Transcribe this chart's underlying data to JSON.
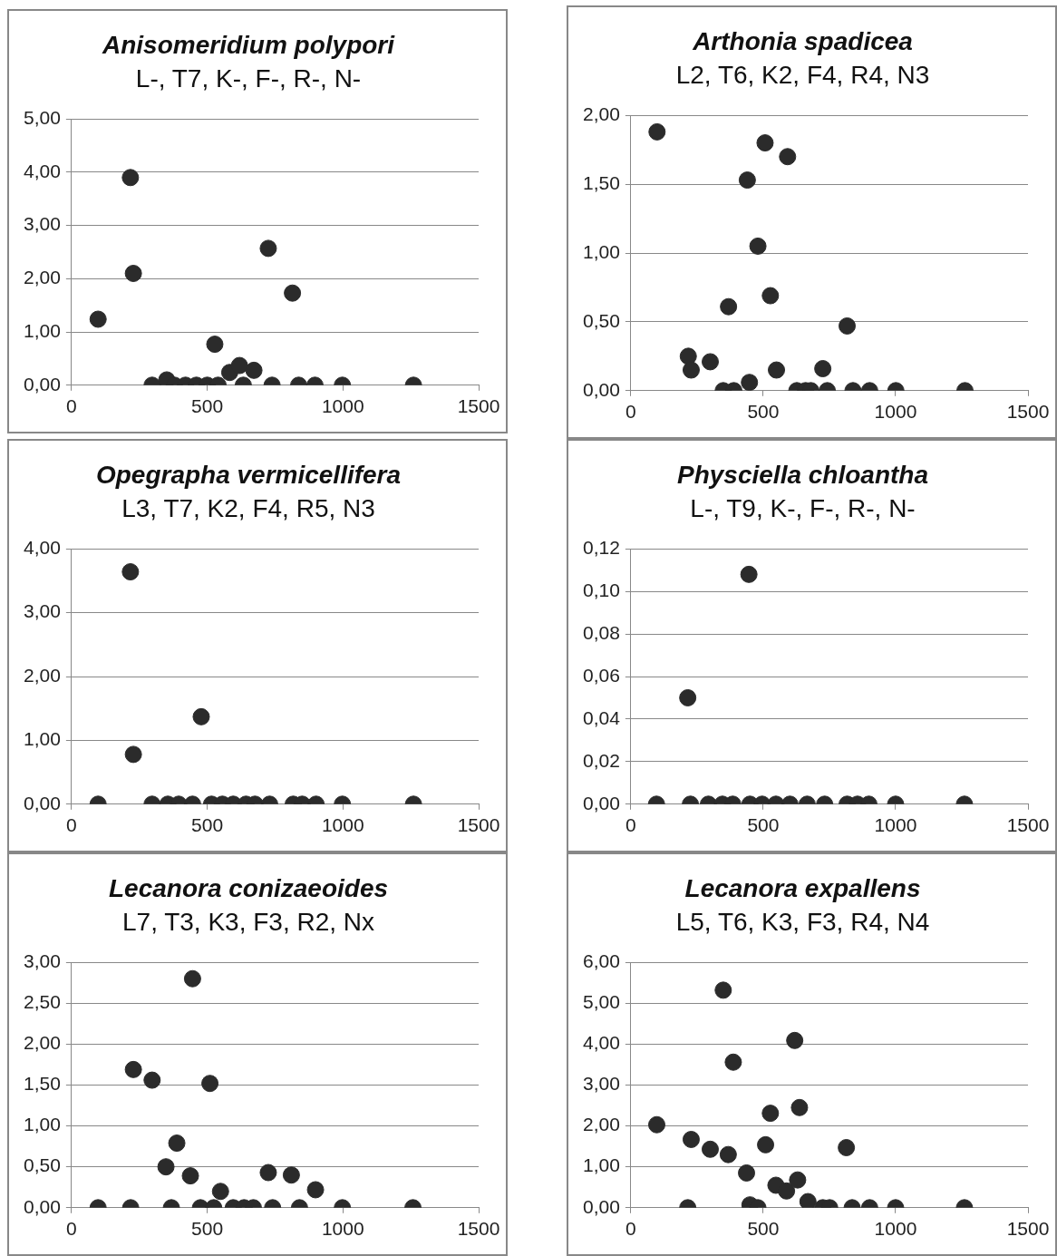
{
  "chart_data": [
    {
      "type": "scatter",
      "title": "Anisomeridium polypori",
      "subtitle": "L-, T7, K-, F-, R-, N-",
      "color": "#2b2b2b",
      "marker": "circle",
      "grid": "y",
      "x": [
        98,
        217,
        228,
        725,
        814,
        528,
        297,
        351,
        379,
        420,
        460,
        500,
        540,
        583,
        619,
        672,
        633,
        739,
        837,
        897,
        998,
        1260
      ],
      "values": [
        1.24,
        3.9,
        2.1,
        2.57,
        1.73,
        0.77,
        0,
        0.1,
        0,
        0,
        0,
        0,
        0,
        0.24,
        0.37,
        0.28,
        0,
        0,
        0,
        0,
        0,
        0
      ],
      "xlim": [
        0,
        1500
      ],
      "xticks": [
        0,
        500,
        1000,
        1500
      ],
      "ylim": [
        0,
        5
      ],
      "yticks": [
        {
          "value": 0,
          "label": "0,00"
        },
        {
          "value": 1,
          "label": "1,00"
        },
        {
          "value": 2,
          "label": "2,00"
        },
        {
          "value": 3,
          "label": "3,00"
        },
        {
          "value": 4,
          "label": "4,00"
        },
        {
          "value": 5,
          "label": "5,00"
        }
      ]
    },
    {
      "type": "scatter",
      "title": "Arthonia spadicea",
      "subtitle": "L2, T6, K2, F4, R4, N3",
      "color": "#2b2b2b",
      "marker": "circle",
      "grid": "y",
      "x": [
        99,
        507,
        592,
        440,
        480,
        527,
        369,
        817,
        217,
        228,
        300,
        550,
        725,
        448,
        349,
        389,
        627,
        660,
        680,
        742,
        839,
        902,
        1001,
        1262
      ],
      "values": [
        1.88,
        1.8,
        1.7,
        1.53,
        1.05,
        0.69,
        0.61,
        0.47,
        0.25,
        0.15,
        0.21,
        0.15,
        0.16,
        0.06,
        0,
        0,
        0,
        0,
        0,
        0,
        0,
        0,
        0,
        0
      ],
      "xlim": [
        0,
        1500
      ],
      "xticks": [
        0,
        500,
        1000,
        1500
      ],
      "ylim": [
        0,
        2
      ],
      "yticks": [
        {
          "value": 0,
          "label": "0,00"
        },
        {
          "value": 0.5,
          "label": "0,50"
        },
        {
          "value": 1,
          "label": "1,00"
        },
        {
          "value": 1.5,
          "label": "1,50"
        },
        {
          "value": 2,
          "label": "2,00"
        }
      ]
    },
    {
      "type": "scatter",
      "title": "Opegrapha vermicellifera",
      "subtitle": "L3, T7, K2, F4, R5, N3",
      "color": "#2b2b2b",
      "marker": "circle",
      "grid": "y",
      "x": [
        98,
        217,
        228,
        478,
        297,
        355,
        395,
        446,
        516,
        556,
        596,
        643,
        676,
        730,
        817,
        850,
        901,
        998,
        1260
      ],
      "values": [
        0,
        3.64,
        0.78,
        1.37,
        0,
        0,
        0,
        0,
        0,
        0,
        0,
        0,
        0,
        0,
        0,
        0,
        0,
        0,
        0
      ],
      "xlim": [
        0,
        1500
      ],
      "xticks": [
        0,
        500,
        1000,
        1500
      ],
      "ylim": [
        0,
        4
      ],
      "yticks": [
        {
          "value": 0,
          "label": "0,00"
        },
        {
          "value": 1,
          "label": "1,00"
        },
        {
          "value": 2,
          "label": "2,00"
        },
        {
          "value": 3,
          "label": "3,00"
        },
        {
          "value": 4,
          "label": "4,00"
        }
      ]
    },
    {
      "type": "scatter",
      "title": "Physciella chloantha",
      "subtitle": "L-, T9, K-, F-, R-, N-",
      "color": "#2b2b2b",
      "marker": "circle",
      "grid": "y",
      "x": [
        97,
        446,
        215,
        225,
        293,
        346,
        385,
        450,
        496,
        548,
        601,
        666,
        732,
        817,
        856,
        899,
        1000,
        1260
      ],
      "values": [
        0,
        0.108,
        0.05,
        0,
        0,
        0,
        0,
        0,
        0,
        0,
        0,
        0,
        0,
        0,
        0,
        0,
        0,
        0
      ],
      "xlim": [
        0,
        1500
      ],
      "xticks": [
        0,
        500,
        1000,
        1500
      ],
      "ylim": [
        0,
        0.12
      ],
      "yticks": [
        {
          "value": 0,
          "label": "0,00"
        },
        {
          "value": 0.02,
          "label": "0,02"
        },
        {
          "value": 0.04,
          "label": "0,04"
        },
        {
          "value": 0.06,
          "label": "0,06"
        },
        {
          "value": 0.08,
          "label": "0,08"
        },
        {
          "value": 0.1,
          "label": "0,10"
        },
        {
          "value": 0.12,
          "label": "0,12"
        }
      ]
    },
    {
      "type": "scatter",
      "title": "Lecanora conizaeoides",
      "subtitle": "L7, T3, K3, F3, R2, Nx",
      "color": "#2b2b2b",
      "marker": "circle",
      "grid": "y",
      "x": [
        446,
        228,
        297,
        510,
        388,
        348,
        438,
        549,
        725,
        810,
        899,
        98,
        218,
        368,
        475,
        524,
        596,
        636,
        670,
        741,
        840,
        998,
        1258
      ],
      "values": [
        2.8,
        1.69,
        1.56,
        1.52,
        0.79,
        0.5,
        0.39,
        0.2,
        0.43,
        0.4,
        0.22,
        0,
        0,
        0,
        0,
        0,
        0,
        0,
        0,
        0,
        0,
        0,
        0
      ],
      "xlim": [
        0,
        1500
      ],
      "xticks": [
        0,
        500,
        1000,
        1500
      ],
      "ylim": [
        0,
        3
      ],
      "yticks": [
        {
          "value": 0,
          "label": "0,00"
        },
        {
          "value": 0.5,
          "label": "0,50"
        },
        {
          "value": 1,
          "label": "1,00"
        },
        {
          "value": 1.5,
          "label": "1,50"
        },
        {
          "value": 2,
          "label": "2,00"
        },
        {
          "value": 2.5,
          "label": "2,50"
        },
        {
          "value": 3,
          "label": "3,00"
        }
      ]
    },
    {
      "type": "scatter",
      "title": "Lecanora expallens",
      "subtitle": "L5, T6, K3, F3, R4, N4",
      "color": "#2b2b2b",
      "marker": "circle",
      "grid": "y",
      "x": [
        349,
        619,
        387,
        637,
        527,
        98,
        228,
        300,
        368,
        509,
        814,
        437,
        548,
        588,
        630,
        669,
        450,
        480,
        725,
        751,
        215,
        836,
        902,
        1000,
        1260
      ],
      "values": [
        5.32,
        4.09,
        3.56,
        2.45,
        2.31,
        2.03,
        1.67,
        1.43,
        1.3,
        1.54,
        1.47,
        0.85,
        0.55,
        0.41,
        0.68,
        0.15,
        0.07,
        0,
        0,
        0,
        0,
        0,
        0,
        0,
        0
      ],
      "xlim": [
        0,
        1500
      ],
      "xticks": [
        0,
        500,
        1000,
        1500
      ],
      "ylim": [
        0,
        6
      ],
      "yticks": [
        {
          "value": 0,
          "label": "0,00"
        },
        {
          "value": 1,
          "label": "1,00"
        },
        {
          "value": 2,
          "label": "2,00"
        },
        {
          "value": 3,
          "label": "3,00"
        },
        {
          "value": 4,
          "label": "4,00"
        },
        {
          "value": 5,
          "label": "5,00"
        },
        {
          "value": 6,
          "label": "6,00"
        }
      ]
    }
  ]
}
